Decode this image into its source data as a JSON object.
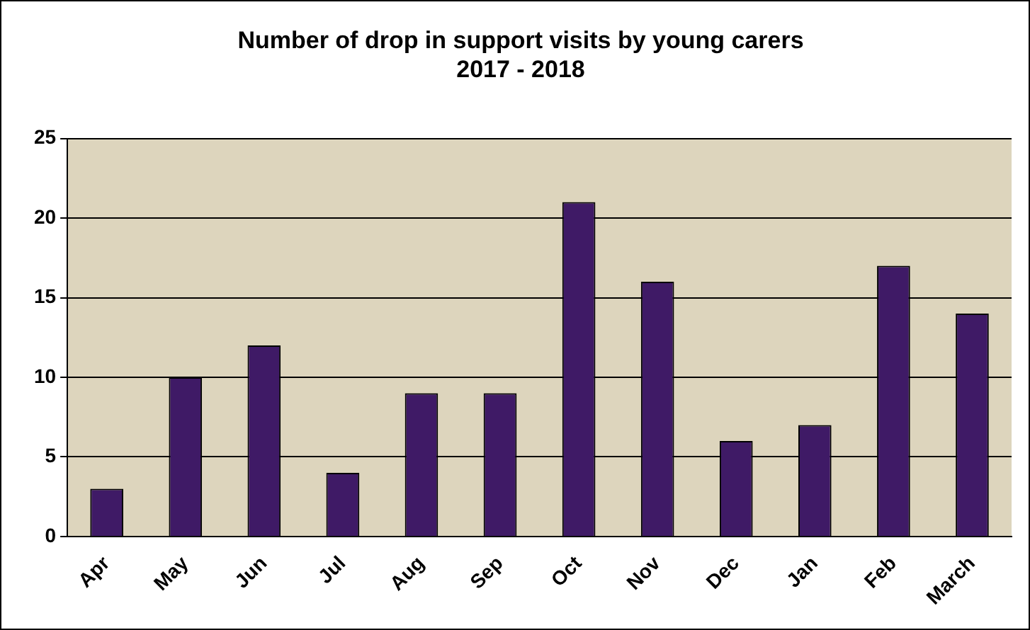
{
  "chart_data": {
    "type": "bar",
    "title": "Number of drop in support visits by young carers\n2017 - 2018",
    "categories": [
      "Apr",
      "May",
      "Jun",
      "Jul",
      "Aug",
      "Sep",
      "Oct",
      "Nov",
      "Dec",
      "Jan",
      "Feb",
      "March"
    ],
    "values": [
      3,
      10,
      12,
      4,
      9,
      9,
      21,
      16,
      6,
      7,
      17,
      14
    ],
    "color": "#3f1a66",
    "ylim": [
      0,
      25
    ],
    "yticks": [
      0,
      5,
      10,
      15,
      20,
      25
    ],
    "grid": "y",
    "legend": false
  }
}
